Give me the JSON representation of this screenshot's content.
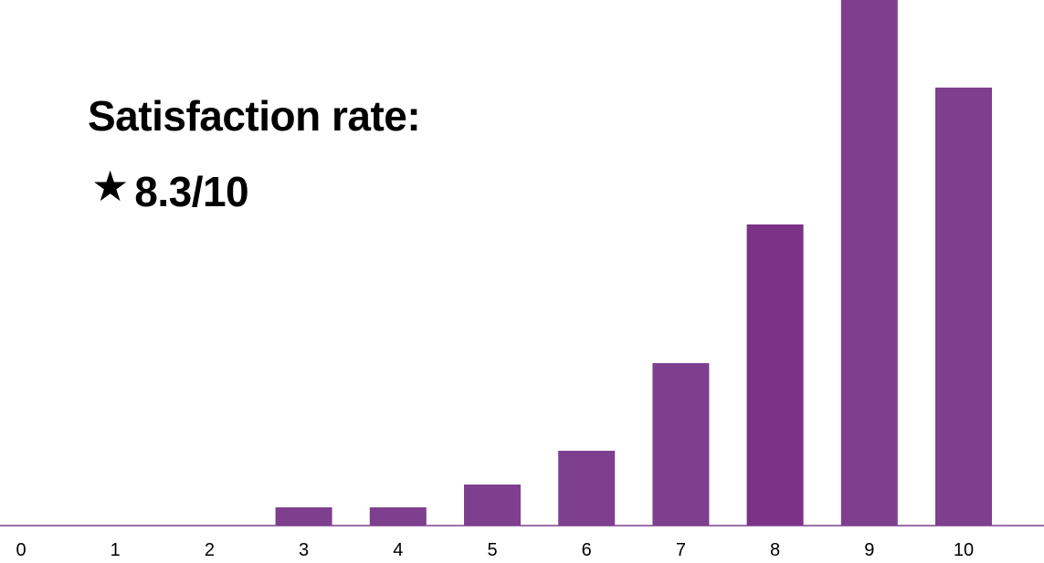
{
  "overlay": {
    "title": "Satisfaction rate:",
    "star_icon": "star-icon",
    "rating": "8.3/10"
  },
  "chart_data": {
    "type": "bar",
    "categories": [
      "0",
      "1",
      "2",
      "3",
      "4",
      "5",
      "6",
      "7",
      "8",
      "9",
      "10"
    ],
    "values": [
      0,
      0,
      0,
      20,
      20,
      45,
      82,
      178,
      330,
      580,
      480
    ],
    "xlabel": "",
    "ylabel": "",
    "ylim": [
      0,
      576
    ],
    "grid": false,
    "legend": "none",
    "colors": {
      "bar": "#7e3f8f",
      "bar_highlight": "#7b3287",
      "axis": "#7e3f8f",
      "tick_label": "#000000"
    },
    "highlight_category": "8"
  }
}
